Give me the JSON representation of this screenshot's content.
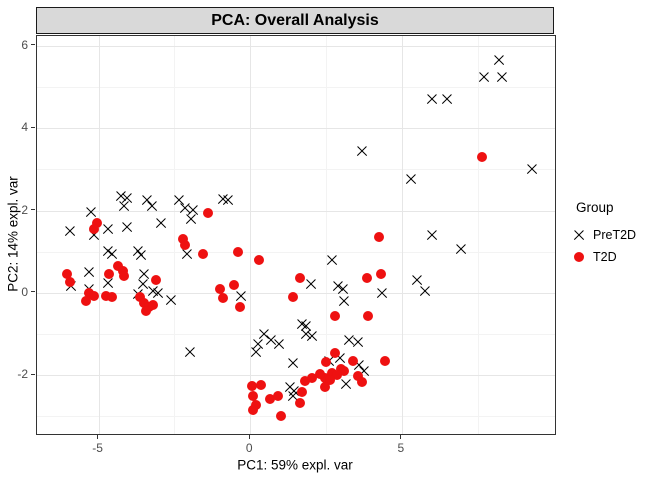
{
  "chart_data": {
    "type": "scatter",
    "title": "PCA: Overall Analysis",
    "xlabel": "PC1: 59% expl. var",
    "ylabel": "PC2: 14% expl. var",
    "x_ticks": [
      -5,
      0,
      5
    ],
    "y_ticks": [
      6,
      4,
      2,
      0,
      -2
    ],
    "x_minor": [
      -2.5,
      2.5,
      7.5
    ],
    "y_minor": [
      5,
      3,
      1,
      -1,
      -3
    ],
    "x_range": [
      -7.03,
      10.05
    ],
    "y_range": [
      -3.43,
      6.24
    ],
    "grid": true,
    "colors": {
      "strip_background": "#d9d9d9",
      "panel_border": "#333333",
      "grid_major": "#e6e6e6",
      "grid_minor": "#f3f3f3",
      "tick_label": "#4d4d4d",
      "pret2d": "#000000",
      "t2d": "#ee1111"
    },
    "legend": {
      "title": "Group",
      "position": "right",
      "entries": [
        {
          "label": "PreT2D",
          "marker": "x",
          "color": "#000000"
        },
        {
          "label": "T2D",
          "marker": "dot",
          "color": "#ee1111"
        }
      ]
    },
    "series": [
      {
        "name": "PreT2D",
        "marker": "x",
        "color": "#000000",
        "points": [
          [
            8.2,
            5.65
          ],
          [
            7.7,
            5.25
          ],
          [
            8.3,
            5.25
          ],
          [
            6.0,
            4.7
          ],
          [
            6.5,
            4.7
          ],
          [
            9.3,
            3.0
          ],
          [
            5.3,
            2.75
          ],
          [
            3.7,
            3.45
          ],
          [
            6.0,
            1.4
          ],
          [
            6.95,
            1.05
          ],
          [
            5.5,
            0.3
          ],
          [
            5.75,
            0.05
          ],
          [
            4.35,
            0.0
          ],
          [
            -5.25,
            1.95
          ],
          [
            -5.95,
            1.5
          ],
          [
            -5.15,
            1.4
          ],
          [
            -4.7,
            1.55
          ],
          [
            -4.05,
            1.6
          ],
          [
            -4.15,
            2.1
          ],
          [
            -4.25,
            2.35
          ],
          [
            -4.05,
            2.3
          ],
          [
            -3.4,
            2.25
          ],
          [
            -3.25,
            2.1
          ],
          [
            -2.35,
            2.25
          ],
          [
            -2.15,
            2.05
          ],
          [
            -1.9,
            2.0
          ],
          [
            -1.95,
            1.8
          ],
          [
            -0.9,
            2.27
          ],
          [
            -0.72,
            2.25
          ],
          [
            -2.95,
            1.7
          ],
          [
            -4.7,
            1.0
          ],
          [
            -3.7,
            1.0
          ],
          [
            -4.55,
            0.95
          ],
          [
            -3.6,
            0.92
          ],
          [
            -2.1,
            0.95
          ],
          [
            -5.3,
            0.5
          ],
          [
            -5.9,
            0.17
          ],
          [
            -5.3,
            0.09
          ],
          [
            -4.7,
            0.23
          ],
          [
            -3.5,
            0.45
          ],
          [
            -3.55,
            0.21
          ],
          [
            -3.7,
            -0.03
          ],
          [
            -3.2,
            0.03
          ],
          [
            -3.05,
            -0.02
          ],
          [
            -2.6,
            -0.18
          ],
          [
            -0.3,
            -0.07
          ],
          [
            2.7,
            0.8
          ],
          [
            2.0,
            0.2
          ],
          [
            2.9,
            0.17
          ],
          [
            3.05,
            0.1
          ],
          [
            3.1,
            -0.2
          ],
          [
            -2.0,
            -1.45
          ],
          [
            0.45,
            -1.0
          ],
          [
            0.7,
            -1.15
          ],
          [
            0.25,
            -1.25
          ],
          [
            0.95,
            -1.25
          ],
          [
            0.2,
            -1.45
          ],
          [
            1.4,
            -1.7
          ],
          [
            1.7,
            -0.77
          ],
          [
            1.85,
            -0.8
          ],
          [
            1.85,
            -1.0
          ],
          [
            2.05,
            -1.05
          ],
          [
            3.25,
            -1.15
          ],
          [
            3.55,
            -1.2
          ],
          [
            2.6,
            -1.65
          ],
          [
            2.95,
            -1.6
          ],
          [
            3.6,
            -1.75
          ],
          [
            3.75,
            -1.9
          ],
          [
            1.3,
            -2.3
          ],
          [
            1.45,
            -2.4
          ],
          [
            1.4,
            -2.5
          ],
          [
            3.15,
            -2.23
          ]
        ]
      },
      {
        "name": "T2D",
        "marker": "dot",
        "color": "#ee1111",
        "points": [
          [
            7.65,
            3.3
          ],
          [
            4.25,
            1.35
          ],
          [
            4.3,
            0.45
          ],
          [
            -5.05,
            1.7
          ],
          [
            -5.15,
            1.55
          ],
          [
            -2.2,
            1.3
          ],
          [
            -2.15,
            1.15
          ],
          [
            -1.4,
            1.93
          ],
          [
            -1.55,
            0.95
          ],
          [
            -0.4,
            1.0
          ],
          [
            0.3,
            0.8
          ],
          [
            -6.05,
            0.45
          ],
          [
            -5.95,
            0.27
          ],
          [
            -4.65,
            0.45
          ],
          [
            -4.35,
            0.65
          ],
          [
            -4.2,
            0.53
          ],
          [
            -4.15,
            0.41
          ],
          [
            -5.3,
            0.0
          ],
          [
            -5.15,
            -0.07
          ],
          [
            -5.4,
            -0.2
          ],
          [
            -4.75,
            -0.07
          ],
          [
            -4.55,
            -0.1
          ],
          [
            -3.1,
            0.3
          ],
          [
            -3.65,
            -0.1
          ],
          [
            -3.5,
            -0.25
          ],
          [
            -3.35,
            -0.35
          ],
          [
            -3.2,
            -0.3
          ],
          [
            -3.45,
            -0.45
          ],
          [
            1.65,
            0.37
          ],
          [
            -1.0,
            0.1
          ],
          [
            -0.55,
            0.19
          ],
          [
            -0.9,
            -0.13
          ],
          [
            -0.35,
            -0.34
          ],
          [
            1.4,
            -0.1
          ],
          [
            3.85,
            0.35
          ],
          [
            2.8,
            -0.56
          ],
          [
            3.9,
            -0.56
          ],
          [
            2.8,
            -1.45
          ],
          [
            2.5,
            -1.68
          ],
          [
            3.4,
            -1.65
          ],
          [
            4.45,
            -1.65
          ],
          [
            3.0,
            -1.85
          ],
          [
            3.1,
            -1.9
          ],
          [
            2.7,
            -1.96
          ],
          [
            2.87,
            -2.0
          ],
          [
            2.47,
            -2.07
          ],
          [
            2.62,
            -2.12
          ],
          [
            3.55,
            -2.03
          ],
          [
            3.7,
            -2.16
          ],
          [
            1.8,
            -2.15
          ],
          [
            2.05,
            -2.07
          ],
          [
            2.3,
            -1.97
          ],
          [
            2.45,
            -2.28
          ],
          [
            0.05,
            -2.27
          ],
          [
            0.35,
            -2.25
          ],
          [
            0.1,
            -2.5
          ],
          [
            0.18,
            -2.72
          ],
          [
            0.08,
            -2.85
          ],
          [
            0.65,
            -2.57
          ],
          [
            0.9,
            -2.5
          ],
          [
            1.0,
            -3.0
          ],
          [
            1.65,
            -2.68
          ],
          [
            1.7,
            -2.4
          ]
        ]
      }
    ]
  }
}
